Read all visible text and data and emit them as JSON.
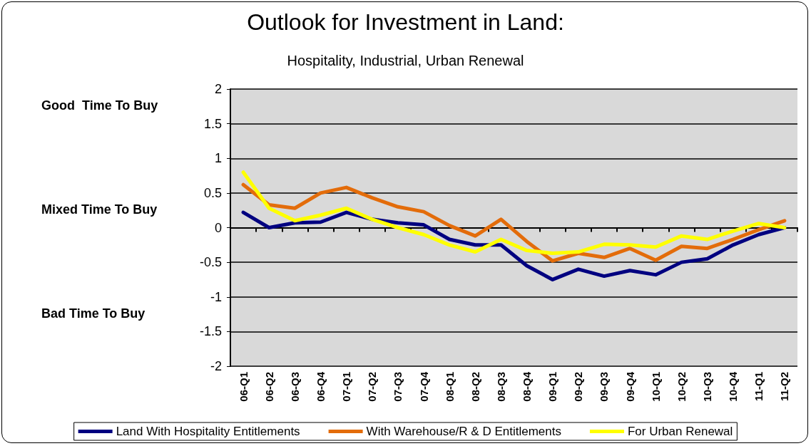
{
  "chart_data": {
    "type": "line",
    "title": "Outlook for Investment in Land:",
    "subtitle": "Hospitality, Industrial, Urban Renewal",
    "categories": [
      "06-Q1",
      "06-Q2",
      "06-Q3",
      "06-Q4",
      "07-Q1",
      "07-Q2",
      "07-Q3",
      "07-Q4",
      "08-Q1",
      "08-Q2",
      "08-Q3",
      "08-Q4",
      "09-Q1",
      "09-Q2",
      "09-Q3",
      "09-Q4",
      "10-Q1",
      "10-Q2",
      "10-Q3",
      "10-Q4",
      "11-Q1",
      "11-Q2"
    ],
    "series": [
      {
        "name": "Land With Hospitality Entitlements",
        "color": "#000080",
        "values": [
          0.22,
          0.0,
          0.07,
          0.08,
          0.22,
          0.12,
          0.07,
          0.04,
          -0.17,
          -0.25,
          -0.25,
          -0.55,
          -0.75,
          -0.6,
          -0.7,
          -0.62,
          -0.68,
          -0.5,
          -0.45,
          -0.25,
          -0.1,
          0.0
        ]
      },
      {
        "name": "With Warehouse/R & D Entitlements",
        "color": "#e36c0a",
        "values": [
          0.62,
          0.33,
          0.28,
          0.5,
          0.58,
          0.43,
          0.3,
          0.23,
          0.03,
          -0.12,
          0.12,
          -0.2,
          -0.48,
          -0.37,
          -0.43,
          -0.3,
          -0.47,
          -0.27,
          -0.3,
          -0.17,
          -0.03,
          0.1
        ]
      },
      {
        "name": "For Urban Renewal",
        "color": "#ffff00",
        "values": [
          0.8,
          0.28,
          0.1,
          0.18,
          0.28,
          0.12,
          0.0,
          -0.1,
          -0.25,
          -0.35,
          -0.17,
          -0.33,
          -0.37,
          -0.35,
          -0.24,
          -0.25,
          -0.28,
          -0.12,
          -0.17,
          -0.05,
          0.06,
          0.0
        ]
      }
    ],
    "ylim": [
      -2,
      2
    ],
    "yticks": [
      -2,
      -1.5,
      -1,
      -0.5,
      0,
      0.5,
      1,
      1.5,
      2
    ],
    "grid": "y",
    "legend": "bottom",
    "marker": "none",
    "line_style": "solid",
    "annotations": [
      "Good  Time To Buy",
      "Mixed Time To Buy",
      "Bad Time To Buy"
    ]
  }
}
